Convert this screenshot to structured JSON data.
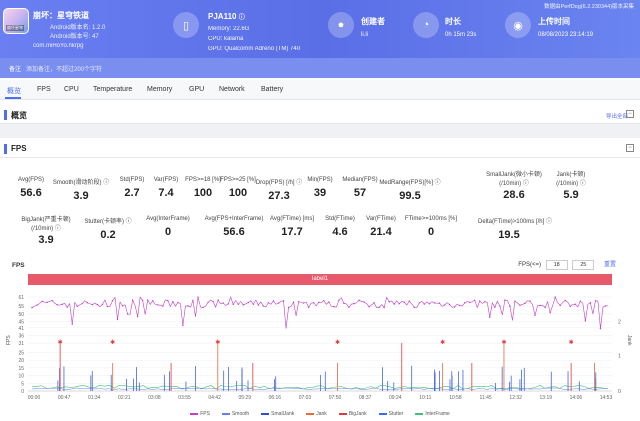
{
  "app": {
    "title": "崩坏：星穹铁道",
    "android_version": "Android版本名: 1.2.0",
    "android_code": "Android版本号: 47",
    "package": "com.miHoYo.hkrpg",
    "icon_badge": "崩坏星穹"
  },
  "device": {
    "name": "PJA110",
    "memory": "Memory: 22.6G",
    "cpu": "CPU: kalama",
    "gpu": "GPU: Qualcomm Adreno (TM) 740"
  },
  "creator": {
    "label": "创建者",
    "value": "li.li"
  },
  "duration": {
    "label": "时长",
    "value": "0h 15m 23s"
  },
  "upload": {
    "label": "上传时间",
    "value": "08/08/2023 23:14:19"
  },
  "top_notice": "数据由PerfDog(6.2.230344)版本采集",
  "remark": {
    "label": "备注",
    "placeholder": "添加备注，不超过200个字符"
  },
  "tabs": [
    "概览",
    "FPS",
    "CPU",
    "Temperature",
    "Memory",
    "GPU",
    "Network",
    "Battery"
  ],
  "overview": {
    "title": "概览",
    "export": "导出全部"
  },
  "fps_section": {
    "title": "FPS"
  },
  "metrics_row1": [
    {
      "label": "Avg(FPS)",
      "value": "56.6"
    },
    {
      "label": "Smooth(滑动阶段) ⓘ",
      "value": "3.9"
    },
    {
      "label": "Std(FPS)",
      "value": "2.7"
    },
    {
      "label": "Var(FPS)",
      "value": "7.4"
    },
    {
      "label": "FPS>=18 [%]",
      "value": "100"
    },
    {
      "label": "FPS>=25 [%]",
      "value": "100"
    },
    {
      "label": "Drop(FPS) [/h] ⓘ",
      "value": "27.3"
    },
    {
      "label": "Min(FPS)",
      "value": "39"
    },
    {
      "label": "Median(FPS)",
      "value": "57"
    },
    {
      "label": "MedRange(FPS)[%] ⓘ",
      "value": "99.5"
    },
    {
      "label": "SmallJank(微小卡顿)",
      "label2": "(/10min) ⓘ",
      "value": "28.6"
    },
    {
      "label": "Jank(卡顿)",
      "label2": "(/10min) ⓘ",
      "value": "5.9"
    }
  ],
  "metrics_row2": [
    {
      "label": "BigJank(严重卡顿)",
      "label2": "(/10min) ⓘ",
      "value": "3.9"
    },
    {
      "label": "Stutter(卡顿率) ⓘ",
      "value": "0.2"
    },
    {
      "label": "Avg(InterFrame)",
      "value": "0"
    },
    {
      "label": "Avg(FPS+InterFrame)",
      "value": "56.6"
    },
    {
      "label": "Avg(FTime) [ms]",
      "value": "17.7"
    },
    {
      "label": "Std(FTime)",
      "value": "4.6"
    },
    {
      "label": "Var(FTime)",
      "value": "21.4"
    },
    {
      "label": "FTime>=100ms [%]",
      "value": "0"
    },
    {
      "label": "Delta(FTime)>100ms [/h] ⓘ",
      "value": "19.5"
    }
  ],
  "chart_header": {
    "title": "FPS",
    "range_label": "FPS(<=)",
    "range_min": "18",
    "range_max": "25",
    "reset": "重置"
  },
  "chart_data": {
    "type": "line",
    "label_bar": "label1",
    "ylabel": "FPS",
    "ylabel_right": "Jank",
    "y_ticks": [
      "61",
      "55",
      "50",
      "45",
      "41",
      "36",
      "31",
      "25",
      "20",
      "15",
      "10",
      "5",
      "0"
    ],
    "y_right_ticks": [
      "2",
      "1",
      "0"
    ],
    "x_ticks": [
      "00:00",
      "00:47",
      "01:34",
      "02:21",
      "03:08",
      "03:55",
      "04:42",
      "05:29",
      "06:16",
      "07:03",
      "07:50",
      "08:37",
      "09:24",
      "10:11",
      "10:58",
      "11:45",
      "12:32",
      "13:19",
      "14:06",
      "14:53"
    ],
    "series_names": [
      "FPS",
      "Smooth",
      "SmallJank",
      "Jank",
      "BigJank",
      "Stutter",
      "InterFrame"
    ],
    "fps_mean": 56.6,
    "fps_min": 39,
    "fps_max": 61
  },
  "colors": {
    "header": "#5a6ee6",
    "accent": "#4e6ef2",
    "fps": "#c23fc8",
    "smooth": "#6b7de6",
    "smalljank": "#2c4fd6",
    "jank": "#e86a3a",
    "bigjank": "#e23a3a",
    "stutter": "#3a6cf0",
    "interframe": "#3fc07a",
    "label_bar": "#e75a6b"
  }
}
